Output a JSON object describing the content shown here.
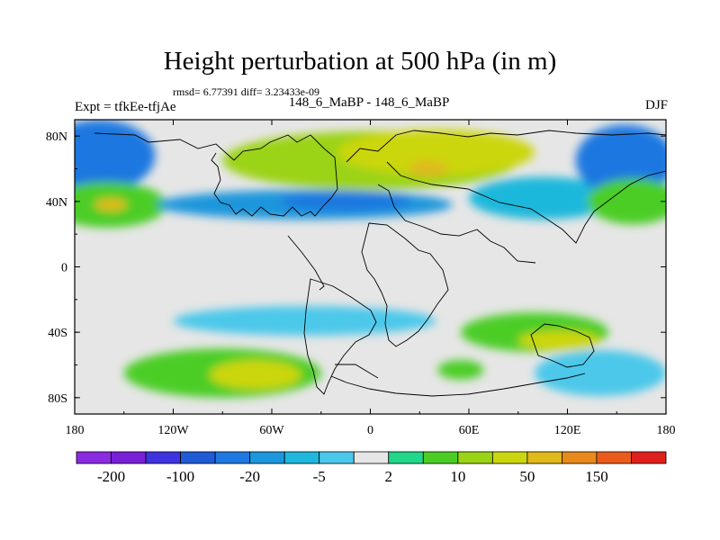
{
  "title": "Height perturbation at 500 hPa (in m)",
  "stats_text": "rmsd= 6.77391 diff= 3.23433e-09",
  "left_label": "Expt = tfkEe-tfjAe",
  "center_label": "148_6_MaBP - 148_6_MaBP",
  "right_label": "DJF",
  "chart_data": {
    "type": "heatmap",
    "xlim": [
      -180,
      180
    ],
    "ylim": [
      -90,
      90
    ],
    "x_ticks": [
      -180,
      -120,
      -60,
      0,
      60,
      120,
      180
    ],
    "x_tick_labels": [
      "180",
      "120W",
      "60W",
      "0",
      "60E",
      "120E",
      "180"
    ],
    "y_ticks": [
      80,
      40,
      0,
      -40,
      -80
    ],
    "y_tick_labels": [
      "80N",
      "40N",
      "0",
      "40S",
      "80S"
    ],
    "colorbar": {
      "levels": [
        -250,
        -200,
        -150,
        -100,
        -50,
        -20,
        -10,
        -5,
        -2,
        2,
        5,
        10,
        20,
        50,
        100,
        150,
        200
      ],
      "shown_labels": [
        {
          "after": 0,
          "text": "-200"
        },
        {
          "after": 2,
          "text": "-100"
        },
        {
          "after": 4,
          "text": "-20"
        },
        {
          "after": 6,
          "text": "-5"
        },
        {
          "after": 8,
          "text": "2"
        },
        {
          "after": 10,
          "text": "10"
        },
        {
          "after": 12,
          "text": "50"
        },
        {
          "after": 14,
          "text": "150"
        }
      ],
      "colors": [
        "#8a2be2",
        "#7a1fd8",
        "#3f33e0",
        "#1f5bd6",
        "#1e78e0",
        "#1c96dc",
        "#1fb8dc",
        "#4cc8ea",
        "#e6e6e6",
        "#22d68a",
        "#4ccd26",
        "#9bd315",
        "#ccd60f",
        "#e0b91a",
        "#e8891c",
        "#eb5c1c",
        "#e0201c"
      ]
    },
    "background_color": "#e6e6e6",
    "blobs": [
      {
        "lon": -165,
        "lat": 68,
        "rlon": 34,
        "rlat": 22,
        "level": 4
      },
      {
        "lon": -160,
        "lat": 38,
        "rlon": 36,
        "rlat": 14,
        "level": 10
      },
      {
        "lon": -158,
        "lat": 38,
        "rlon": 10,
        "rlat": 4,
        "level": 13
      },
      {
        "lon": -40,
        "lat": 38,
        "rlon": 90,
        "rlat": 9,
        "level": 5
      },
      {
        "lon": -15,
        "lat": 40,
        "rlon": 40,
        "rlat": 6,
        "level": 4
      },
      {
        "lon": 0,
        "lat": 65,
        "rlon": 90,
        "rlat": 18,
        "level": 11
      },
      {
        "lon": 40,
        "lat": 70,
        "rlon": 60,
        "rlat": 14,
        "level": 12
      },
      {
        "lon": 35,
        "lat": 60,
        "rlon": 12,
        "rlat": 5,
        "level": 13
      },
      {
        "lon": 105,
        "lat": 42,
        "rlon": 45,
        "rlat": 13,
        "level": 6
      },
      {
        "lon": 155,
        "lat": 65,
        "rlon": 30,
        "rlat": 22,
        "level": 4
      },
      {
        "lon": 160,
        "lat": 40,
        "rlon": 28,
        "rlat": 14,
        "level": 10
      },
      {
        "lon": -40,
        "lat": -33,
        "rlon": 80,
        "rlat": 9,
        "level": 7
      },
      {
        "lon": 100,
        "lat": -40,
        "rlon": 45,
        "rlat": 12,
        "level": 10
      },
      {
        "lon": 115,
        "lat": -45,
        "rlon": 25,
        "rlat": 6,
        "level": 12
      },
      {
        "lon": -90,
        "lat": -65,
        "rlon": 60,
        "rlat": 15,
        "level": 10
      },
      {
        "lon": -70,
        "lat": -66,
        "rlon": 28,
        "rlat": 9,
        "level": 12
      },
      {
        "lon": 55,
        "lat": -63,
        "rlon": 14,
        "rlat": 6,
        "level": 10
      },
      {
        "lon": 140,
        "lat": -65,
        "rlon": 40,
        "rlat": 14,
        "level": 7
      }
    ]
  }
}
